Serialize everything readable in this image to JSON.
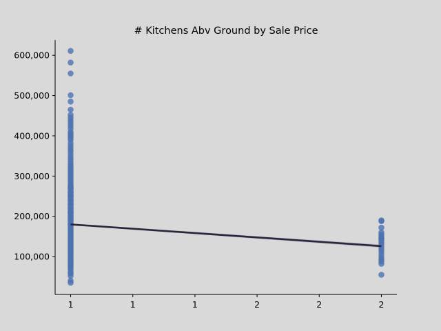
{
  "chart_data": {
    "type": "scatter",
    "title": "# Kitchens Abv Ground by Sale Price",
    "xlabel": "",
    "ylabel": "",
    "xlim": [
      0.95,
      2.05
    ],
    "ylim": [
      6000,
      638000
    ],
    "x_ticks": [
      {
        "value": 1.0,
        "label": "1"
      },
      {
        "value": 1.2,
        "label": "1"
      },
      {
        "value": 1.4,
        "label": "1"
      },
      {
        "value": 1.6,
        "label": "2"
      },
      {
        "value": 1.8,
        "label": "2"
      },
      {
        "value": 2.0,
        "label": "2"
      }
    ],
    "y_ticks": [
      {
        "value": 100000,
        "label": "100,000"
      },
      {
        "value": 200000,
        "label": "200,000"
      },
      {
        "value": 300000,
        "label": "300,000"
      },
      {
        "value": 400000,
        "label": "400,000"
      },
      {
        "value": 500000,
        "label": "500,000"
      },
      {
        "value": 600000,
        "label": "600,000"
      }
    ],
    "grid": false,
    "series": [
      {
        "kind": "points",
        "color": "#4c72b0",
        "x": [
          1,
          1,
          1,
          1,
          1,
          1,
          1,
          1,
          1,
          1,
          1,
          1,
          1,
          1,
          1,
          1,
          1,
          1,
          1,
          1,
          1,
          1,
          1,
          1,
          1,
          1,
          1,
          1,
          1,
          1,
          1,
          1,
          1,
          1,
          1,
          1,
          1,
          1,
          1,
          1,
          1,
          1,
          1,
          1,
          1,
          1,
          1,
          1,
          1,
          1,
          1,
          1,
          1,
          1,
          1,
          1,
          1,
          1,
          1,
          1,
          1,
          1,
          1,
          1,
          1,
          1,
          1,
          1,
          1,
          1,
          1,
          1,
          1,
          1,
          1,
          1,
          1,
          1,
          1,
          1,
          1,
          1,
          1,
          1,
          1,
          1,
          1,
          1,
          1,
          1,
          1,
          1,
          1,
          1,
          1,
          1,
          1,
          1,
          1,
          1,
          1,
          1,
          1,
          1,
          2,
          2,
          2,
          2,
          2,
          2,
          2,
          2,
          2,
          2,
          2,
          2,
          2,
          2,
          2,
          2,
          2,
          2,
          2,
          2
        ],
        "y": [
          35000,
          40000,
          52000,
          58000,
          62000,
          68000,
          72000,
          76000,
          80000,
          84000,
          88000,
          92000,
          96000,
          100000,
          104000,
          108000,
          112000,
          116000,
          120000,
          124000,
          128000,
          132000,
          136000,
          140000,
          144000,
          148000,
          152000,
          156000,
          160000,
          164000,
          168000,
          172000,
          176000,
          180000,
          184000,
          188000,
          192000,
          196000,
          200000,
          204000,
          208000,
          212000,
          216000,
          220000,
          224000,
          228000,
          232000,
          236000,
          240000,
          244000,
          248000,
          252000,
          256000,
          260000,
          264000,
          268000,
          272000,
          276000,
          280000,
          285000,
          290000,
          295000,
          300000,
          305000,
          310000,
          315000,
          320000,
          325000,
          330000,
          336000,
          342000,
          348000,
          355000,
          362000,
          368000,
          375000,
          382000,
          390000,
          395000,
          400000,
          405000,
          410000,
          418000,
          425000,
          432000,
          438000,
          445000,
          452000,
          465000,
          485000,
          501000,
          555000,
          582000,
          611000,
          180000,
          190000,
          200000,
          210000,
          220000,
          230000,
          240000,
          250000,
          260000,
          270000,
          55000,
          82000,
          88000,
          93000,
          98000,
          105000,
          112000,
          118000,
          124000,
          130000,
          135000,
          140000,
          145000,
          150000,
          155000,
          160000,
          172000,
          188000,
          190000,
          145000
        ]
      },
      {
        "kind": "regression",
        "color": "#2e243d",
        "x": [
          1,
          2
        ],
        "y": [
          180000,
          126000
        ],
        "ci_upper": [
          182000,
          130000
        ],
        "ci_lower": [
          178000,
          122000
        ]
      }
    ]
  }
}
